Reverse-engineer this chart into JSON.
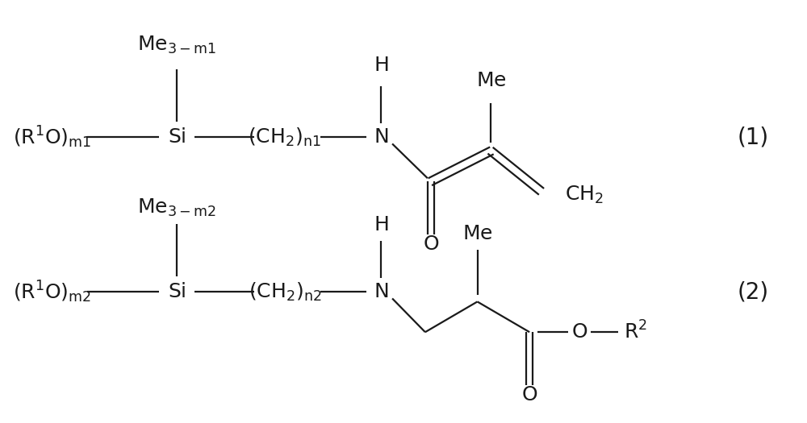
{
  "background_color": "#ffffff",
  "text_color": "#1a1a1a",
  "line_color": "#1a1a1a",
  "fig_width": 10.0,
  "fig_height": 5.25,
  "formula1_label": "(1)",
  "formula2_label": "(2)",
  "font_size_main": 18,
  "font_size_label": 20
}
